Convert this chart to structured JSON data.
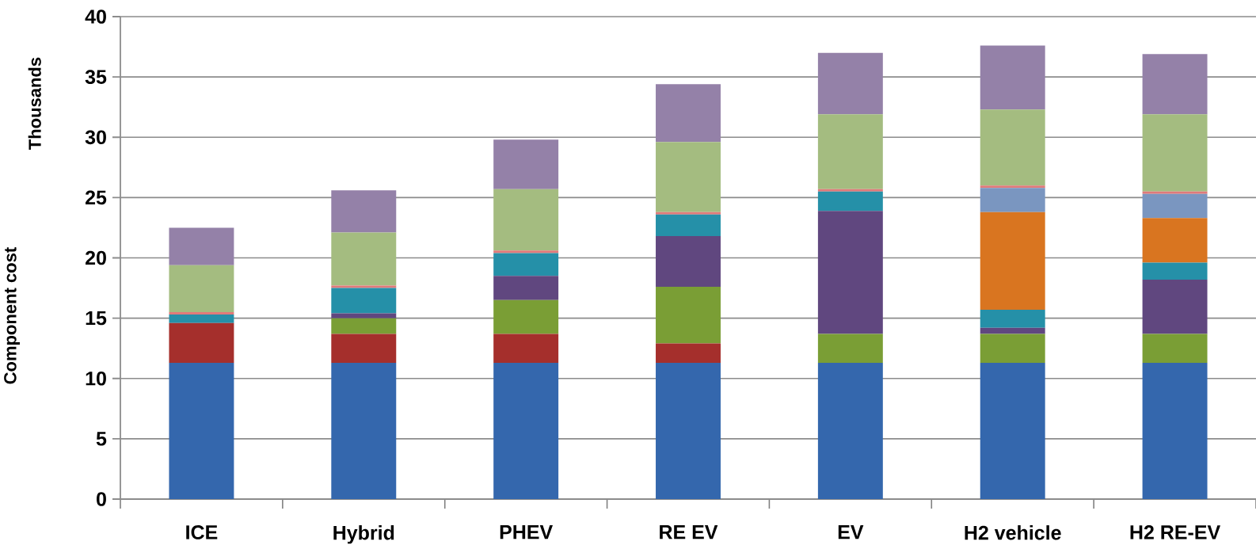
{
  "chart_data": {
    "type": "bar",
    "stacked": true,
    "ylabel": "Component cost",
    "annotations": [
      "Thousands"
    ],
    "categories": [
      "ICE",
      "Hybrid",
      "PHEV",
      "RE EV",
      "EV",
      "H2 vehicle",
      "H2 RE-EV"
    ],
    "series": [
      {
        "color": "#3467ad",
        "values": [
          11.3,
          11.3,
          11.3,
          11.3,
          11.3,
          11.3,
          11.3
        ]
      },
      {
        "color": "#a52f2c",
        "values": [
          3.3,
          2.4,
          2.4,
          1.6,
          0,
          0,
          0
        ]
      },
      {
        "color": "#7a9e35",
        "values": [
          0,
          1.3,
          2.8,
          4.7,
          2.4,
          2.4,
          2.4
        ]
      },
      {
        "color": "#60477f",
        "values": [
          0,
          0.4,
          2.0,
          4.2,
          10.2,
          0.5,
          4.5
        ]
      },
      {
        "color": "#2590a8",
        "values": [
          0.7,
          2.1,
          1.9,
          1.8,
          1.6,
          1.5,
          1.4
        ]
      },
      {
        "color": "#d97520",
        "values": [
          0,
          0,
          0,
          0,
          0,
          8.1,
          3.7
        ]
      },
      {
        "color": "#7a96c0",
        "values": [
          0,
          0,
          0,
          0,
          0,
          2.0,
          2.0
        ]
      },
      {
        "color": "#e07a7a",
        "values": [
          0.2,
          0.2,
          0.2,
          0.2,
          0.2,
          0.2,
          0.2
        ]
      },
      {
        "color": "#a4bc80",
        "values": [
          3.9,
          4.4,
          5.1,
          5.8,
          6.2,
          6.3,
          6.4
        ]
      },
      {
        "color": "#9481a8",
        "values": [
          3.1,
          3.5,
          4.1,
          4.8,
          5.1,
          5.3,
          5.0
        ]
      }
    ],
    "ylim": [
      0,
      40
    ],
    "yticks": [
      0,
      5,
      10,
      15,
      20,
      25,
      30,
      35,
      40
    ],
    "grid": "y"
  }
}
